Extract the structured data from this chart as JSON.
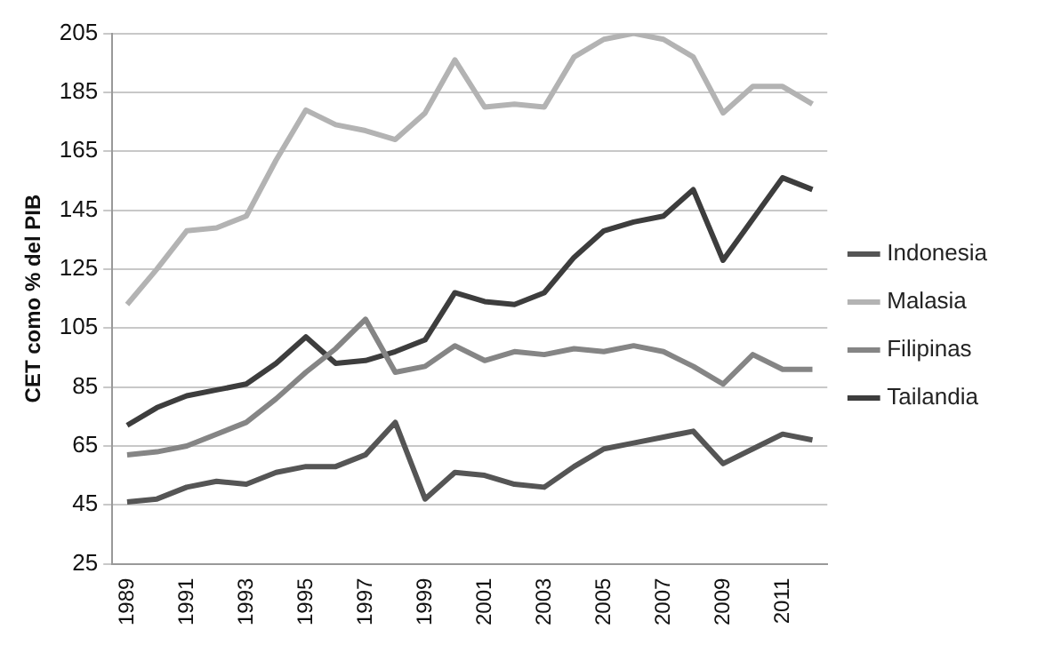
{
  "chart_data": {
    "type": "line",
    "ylabel": "CET como % del PIB",
    "categories": [
      "1989",
      null,
      "1991",
      null,
      "1993",
      null,
      "1995",
      null,
      "1997",
      null,
      "1999",
      null,
      "2001",
      null,
      "2003",
      null,
      "2005",
      null,
      "2007",
      null,
      "2009",
      null,
      "2011",
      null
    ],
    "series": [
      {
        "name": "Indonesia",
        "color": "#555555",
        "values": [
          46,
          47,
          51,
          53,
          52,
          56,
          58,
          58,
          62,
          73,
          47,
          56,
          55,
          52,
          51,
          58,
          64,
          66,
          68,
          70,
          59,
          64,
          69,
          67
        ]
      },
      {
        "name": "Malasia",
        "color": "#b3b3b3",
        "values": [
          113,
          125,
          138,
          139,
          143,
          162,
          179,
          174,
          172,
          169,
          178,
          196,
          180,
          181,
          180,
          197,
          203,
          205,
          203,
          197,
          178,
          187,
          187,
          181
        ]
      },
      {
        "name": "Filipinas",
        "color": "#858585",
        "values": [
          62,
          63,
          65,
          69,
          73,
          81,
          90,
          98,
          108,
          90,
          92,
          99,
          94,
          97,
          96,
          98,
          97,
          99,
          97,
          92,
          86,
          96,
          91,
          91
        ]
      },
      {
        "name": "Tailandia",
        "color": "#3d3d3d",
        "values": [
          72,
          78,
          82,
          84,
          86,
          93,
          102,
          93,
          94,
          97,
          101,
          117,
          114,
          113,
          117,
          129,
          138,
          141,
          143,
          152,
          128,
          142,
          156,
          152
        ]
      }
    ],
    "ylim": [
      25,
      205
    ],
    "yticks": [
      25,
      45,
      65,
      85,
      105,
      125,
      145,
      165,
      185,
      205
    ],
    "grid": "y",
    "legend": "right",
    "marker": "none",
    "line_style": "solid"
  }
}
